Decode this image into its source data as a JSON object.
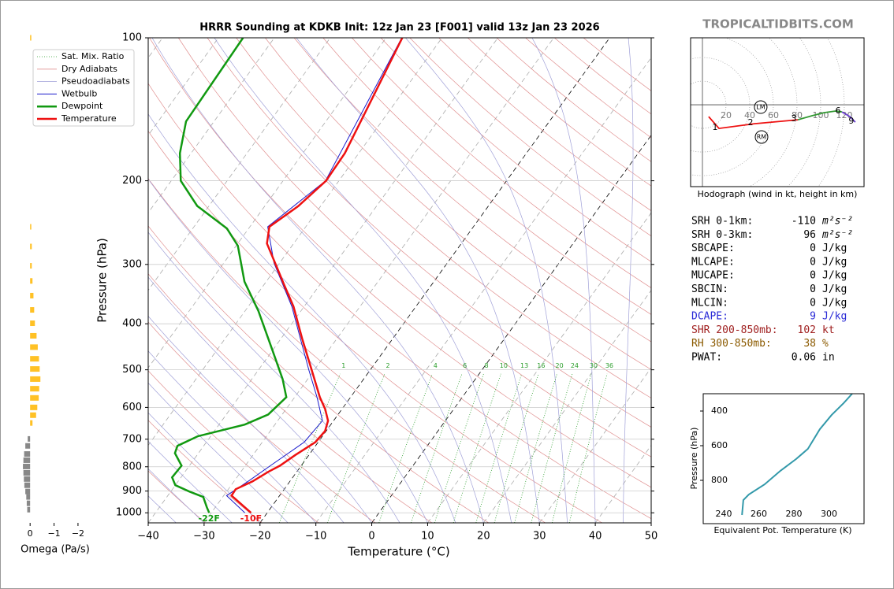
{
  "branding": {
    "watermark": "TROPICALTIDBITS.COM"
  },
  "indices": [
    {
      "label": "SRH 0-1km:",
      "value": -110,
      "unit": "m²s⁻²"
    },
    {
      "label": "SRH 0-3km:",
      "value": 96,
      "unit": "m²s⁻²"
    },
    {
      "label": "SBCAPE:",
      "value": 0,
      "unit": "J/kg"
    },
    {
      "label": "MLCAPE:",
      "value": 0,
      "unit": "J/kg"
    },
    {
      "label": "MUCAPE:",
      "value": 0,
      "unit": "J/kg"
    },
    {
      "label": "SBCIN:",
      "value": 0,
      "unit": "J/kg"
    },
    {
      "label": "MLCIN:",
      "value": 0,
      "unit": "J/kg"
    },
    {
      "label": "DCAPE:",
      "value": 9,
      "unit": "J/kg",
      "color": "#2b2bd6"
    },
    {
      "label": "SHR 200-850mb:",
      "value": 102,
      "unit": "kt",
      "color": "#a02020"
    },
    {
      "label": "RH 300-850mb:",
      "value": 38,
      "unit": "%",
      "color": "#8b5a00"
    },
    {
      "label": "PWAT:",
      "value": 0.06,
      "unit": "in"
    }
  ],
  "chart_data": [
    {
      "type": "skewt",
      "title": "HRRR Sounding at KDKB Init: 12z Jan 23 [F001] valid 13z Jan 23 2026",
      "x_label": "Temperature (°C)",
      "y_label": "Pressure (hPa)",
      "log_scale_y": true,
      "grid": true,
      "xlim": [
        -40,
        50
      ],
      "ylim": [
        1050,
        100
      ],
      "xticks": [
        {
          "value": -40,
          "label": "−40"
        },
        {
          "value": -30,
          "label": "−30"
        },
        {
          "value": -20,
          "label": "−20"
        },
        {
          "value": -10,
          "label": "−10"
        },
        0,
        10,
        20,
        30,
        40,
        50
      ],
      "yticks": [
        1000,
        900,
        800,
        700,
        600,
        500,
        400,
        300,
        200,
        100
      ],
      "mixing_ratios": [
        1,
        2,
        4,
        6,
        8,
        10,
        13,
        16,
        20,
        24,
        30,
        36
      ],
      "background_lines": [
        {
          "name": "Sat. Mix. Ratio",
          "color": "#2a9d2a",
          "dash": "dotted"
        },
        {
          "name": "Dry Adiabats",
          "color": "#e09090"
        },
        {
          "name": "Pseudoadiabats",
          "color": "#a0a0d8"
        }
      ],
      "series": [
        {
          "name": "Wetbulb",
          "color": "#1a1acc",
          "width": 1,
          "pressure": [
            1000,
            920,
            859,
            796,
            710,
            640,
            571,
            500,
            429,
            368,
            298,
            250,
            200,
            100
          ],
          "values": [
            -24,
            -29.5,
            -27.5,
            -25.5,
            -22.5,
            -22,
            -26,
            -31,
            -36.6,
            -42.2,
            -51,
            -56.8,
            -52.4,
            -57.2
          ]
        },
        {
          "name": "Dewpoint",
          "color": "#119911",
          "width": 2.5,
          "surface_label": "-22F",
          "pressure": [
            1000,
            974,
            926,
            902,
            875,
            842,
            796,
            749,
            723,
            690,
            652,
            621,
            571,
            523,
            454,
            376,
            326,
            274,
            252,
            226,
            200,
            175,
            150,
            100
          ],
          "values": [
            -30.4,
            -31.5,
            -33.5,
            -36.7,
            -40,
            -41.6,
            -41.4,
            -44.2,
            -44.7,
            -42.3,
            -35.4,
            -32.5,
            -31.5,
            -34.5,
            -40.1,
            -47.6,
            -53.9,
            -59.7,
            -63.9,
            -72.1,
            -78.3,
            -82,
            -85,
            -85.6
          ]
        },
        {
          "name": "Temperature",
          "color": "#ee1111",
          "width": 2.5,
          "surface_label": "-10F",
          "pressure": [
            1000,
            920,
            892,
            859,
            820,
            796,
            755,
            710,
            673,
            640,
            605,
            571,
            500,
            429,
            368,
            331,
            298,
            271,
            250,
            226,
            200,
            175,
            137,
            100
          ],
          "values": [
            -22.9,
            -28.6,
            -28.7,
            -26.7,
            -25.1,
            -23.8,
            -22.4,
            -20.5,
            -20.2,
            -21,
            -23,
            -25.5,
            -30.5,
            -36.3,
            -41.9,
            -46.4,
            -50.8,
            -54.8,
            -56.5,
            -54,
            -52.3,
            -52.5,
            -54.5,
            -57.1
          ]
        }
      ]
    },
    {
      "type": "bar",
      "orientation": "horizontal",
      "x_label": "Omega (Pa/s)",
      "xlim": [
        0.5,
        -2.2
      ],
      "ylim": [
        1050,
        100
      ],
      "xticks": [
        0,
        {
          "value": -1,
          "label": "−1"
        },
        {
          "value": -2,
          "label": "−2"
        }
      ],
      "color_negative": "#ffc125",
      "color_positive": "#888888",
      "pressure": [
        100,
        250,
        275,
        302,
        325,
        349,
        374,
        399,
        424,
        448,
        474,
        498,
        523,
        548,
        573,
        600,
        623,
        647,
        699,
        723,
        752,
        775,
        799,
        824,
        849,
        875,
        902,
        926,
        955,
        985
      ],
      "values": [
        -0.05,
        -0.05,
        -0.07,
        -0.07,
        -0.1,
        -0.14,
        -0.17,
        -0.2,
        -0.27,
        -0.32,
        -0.37,
        -0.4,
        -0.43,
        -0.38,
        -0.36,
        -0.3,
        -0.25,
        -0.1,
        0.1,
        0.2,
        0.25,
        0.28,
        0.3,
        0.28,
        0.26,
        0.24,
        0.2,
        0.16,
        0.14,
        0.12
      ]
    },
    {
      "type": "hodograph",
      "caption": "Hodograph (wind in kt, height in km)",
      "xlim": [
        -10,
        136.7
      ],
      "ylim": [
        -69.3,
        56.7
      ],
      "rings": [
        20,
        40,
        60,
        80,
        100,
        120
      ],
      "series": [
        {
          "color": "#ee1111",
          "u": [
            5.3,
            14,
            44,
            80.7
          ],
          "v": [
            -10,
            -20,
            -16,
            -12.7
          ],
          "heights": [
            null,
            1,
            2,
            3
          ]
        },
        {
          "color": "#339933",
          "u": [
            80.7,
            92.7,
            102.7,
            112.7,
            118
          ],
          "v": [
            -12.7,
            -9.3,
            -6.7,
            -5.3,
            -6
          ],
          "heights": [
            null,
            null,
            null,
            null,
            6
          ]
        },
        {
          "color": "#6a3fd0",
          "u": [
            118,
            124.7,
            129.3
          ],
          "v": [
            -6,
            -10,
            -14.7
          ],
          "heights": [
            null,
            null,
            9
          ]
        }
      ],
      "storm_motions": [
        {
          "label": "LM",
          "u": 49.3,
          "v": -2
        },
        {
          "label": "RM",
          "u": 50,
          "v": -27.3
        }
      ]
    },
    {
      "type": "line",
      "x_label": "Equivalent Pot. Temperature (K)",
      "y_label": "Pressure (hPa)",
      "color": "#3399aa",
      "xlim": [
        228.3,
        320
      ],
      "ylim": [
        1050,
        300
      ],
      "xticks": [
        240,
        260,
        280,
        300
      ],
      "yticks": [
        400,
        600,
        800
      ],
      "pressure": [
        1000,
        914,
        882,
        823,
        745,
        677,
        618,
        505,
        423,
        355,
        300
      ],
      "values": [
        250.4,
        251.2,
        254.3,
        263.3,
        272.3,
        281.3,
        288,
        294.8,
        301.5,
        308.3,
        313.2
      ]
    }
  ]
}
